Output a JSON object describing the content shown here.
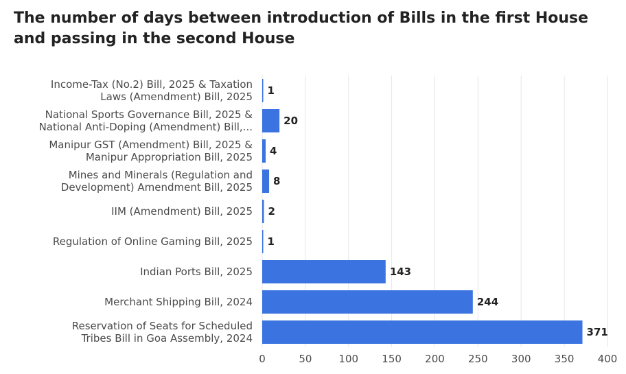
{
  "chart_data": {
    "type": "bar",
    "orientation": "horizontal",
    "title": "The number of days between introduction of Bills in the first House and passing in the second House",
    "categories": [
      [
        "Income-Tax (No.2) Bill, 2025 & Taxation",
        "Laws (Amendment) Bill, 2025"
      ],
      [
        "National Sports Governance Bill, 2025 &",
        "National Anti-Doping (Amendment) Bill,..."
      ],
      [
        "Manipur GST (Amendment) Bill, 2025 &",
        "Manipur Appropriation Bill, 2025"
      ],
      [
        "Mines and Minerals (Regulation and",
        "Development) Amendment Bill, 2025"
      ],
      [
        "IIM (Amendment) Bill, 2025"
      ],
      [
        "Regulation of Online Gaming Bill, 2025"
      ],
      [
        "Indian Ports Bill, 2025"
      ],
      [
        "Merchant Shipping Bill, 2024"
      ],
      [
        "Reservation of Seats for Scheduled",
        "Tribes Bill in Goa Assembly, 2024"
      ]
    ],
    "values": [
      1,
      20,
      4,
      8,
      2,
      1,
      143,
      244,
      371
    ],
    "xlim": [
      0,
      400
    ],
    "xticks": [
      0,
      50,
      100,
      150,
      200,
      250,
      300,
      350,
      400
    ],
    "grid": true,
    "bar_color": "#3b74e0",
    "grid_color": "#e6e6e6"
  }
}
